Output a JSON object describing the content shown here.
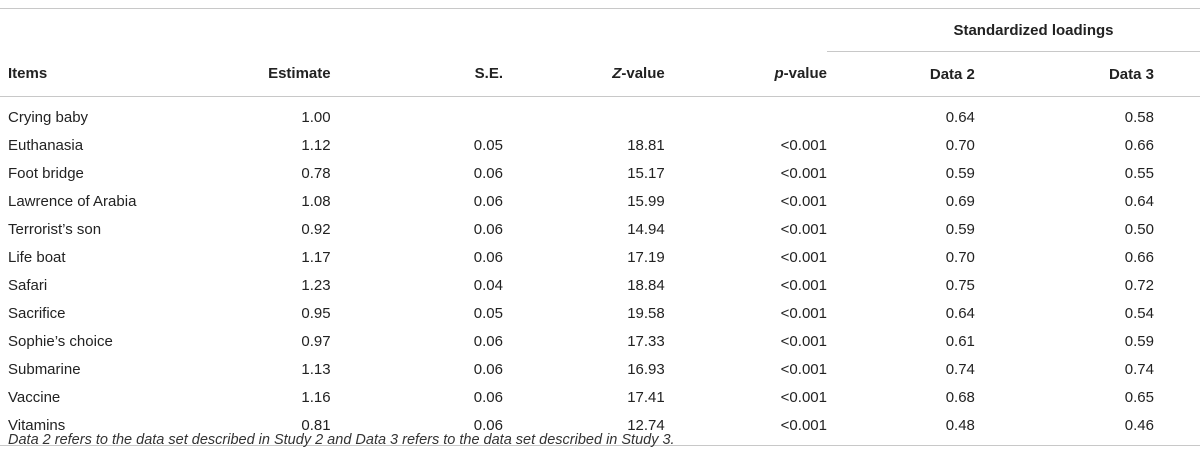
{
  "table": {
    "group_header": "Standardized loadings",
    "columns": {
      "items": "Items",
      "estimate": "Estimate",
      "se": "S.E.",
      "z_italic": "Z",
      "z_rest": "-value",
      "p_italic": "p",
      "p_rest": "-value",
      "data2": "Data 2",
      "data3": "Data 3"
    },
    "rows": [
      {
        "item": "Crying baby",
        "estimate": "1.00",
        "se": "",
        "z": "",
        "p": "",
        "data2": "0.64",
        "data3": "0.58"
      },
      {
        "item": "Euthanasia",
        "estimate": "1.12",
        "se": "0.05",
        "z": "18.81",
        "p": "<0.001",
        "data2": "0.70",
        "data3": "0.66"
      },
      {
        "item": "Foot bridge",
        "estimate": "0.78",
        "se": "0.06",
        "z": "15.17",
        "p": "<0.001",
        "data2": "0.59",
        "data3": "0.55"
      },
      {
        "item": "Lawrence of Arabia",
        "estimate": "1.08",
        "se": "0.06",
        "z": "15.99",
        "p": "<0.001",
        "data2": "0.69",
        "data3": "0.64"
      },
      {
        "item": "Terrorist’s son",
        "estimate": "0.92",
        "se": "0.06",
        "z": "14.94",
        "p": "<0.001",
        "data2": "0.59",
        "data3": "0.50"
      },
      {
        "item": "Life boat",
        "estimate": "1.17",
        "se": "0.06",
        "z": "17.19",
        "p": "<0.001",
        "data2": "0.70",
        "data3": "0.66"
      },
      {
        "item": "Safari",
        "estimate": "1.23",
        "se": "0.04",
        "z": "18.84",
        "p": "<0.001",
        "data2": "0.75",
        "data3": "0.72"
      },
      {
        "item": "Sacrifice",
        "estimate": "0.95",
        "se": "0.05",
        "z": "19.58",
        "p": "<0.001",
        "data2": "0.64",
        "data3": "0.54"
      },
      {
        "item": "Sophie’s choice",
        "estimate": "0.97",
        "se": "0.06",
        "z": "17.33",
        "p": "<0.001",
        "data2": "0.61",
        "data3": "0.59"
      },
      {
        "item": "Submarine",
        "estimate": "1.13",
        "se": "0.06",
        "z": "16.93",
        "p": "<0.001",
        "data2": "0.74",
        "data3": "0.74"
      },
      {
        "item": "Vaccine",
        "estimate": "1.16",
        "se": "0.06",
        "z": "17.41",
        "p": "<0.001",
        "data2": "0.68",
        "data3": "0.65"
      },
      {
        "item": "Vitamins",
        "estimate": "0.81",
        "se": "0.06",
        "z": "12.74",
        "p": "<0.001",
        "data2": "0.48",
        "data3": "0.46"
      }
    ]
  },
  "footnote": "Data 2 refers to the data set described in Study 2 and Data 3 refers to the data set described in Study 3."
}
